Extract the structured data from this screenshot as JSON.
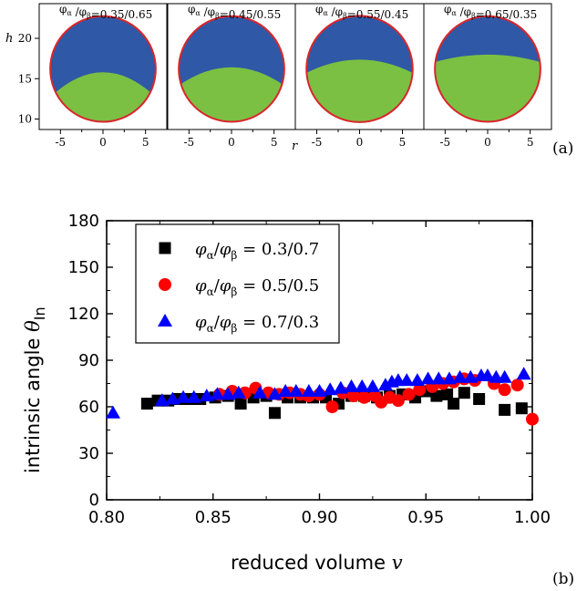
{
  "chart_data": [
    {
      "type": "heatmap",
      "panel_label": "(a)",
      "ylabel": "h",
      "xlabel": "r",
      "xticks": [
        -5,
        0,
        5
      ],
      "yticks": [
        10,
        15,
        20
      ],
      "xlim": [
        -7.5,
        7.5
      ],
      "ylim": [
        8.7,
        24.3
      ],
      "sphere": {
        "center_r": 0,
        "center_h": 16.2,
        "radius": 6.2
      },
      "phase_colors": {
        "beta": "#2f58a6",
        "alpha": "#7bc043",
        "rim": "#d9262b"
      },
      "subplots": [
        {
          "title": "φα /φβ=0.35/0.65",
          "sub1": "α",
          "sub2": "β",
          "ratio": "=0.35/0.65",
          "sub1_label": "φ",
          "interface_h": 15.5,
          "interface_curv": 3.0
        },
        {
          "title": "φα /φβ=0.45/0.55",
          "sub1": "α",
          "sub2": "β",
          "ratio": "=0.45/0.55",
          "sub1_label": "φ",
          "interface_h": 16.2,
          "interface_curv": 2.2
        },
        {
          "title": "φα /φβ=0.55/0.45",
          "sub1": "α",
          "sub2": "β",
          "ratio": "=0.55/0.45",
          "sub1_label": "φ",
          "interface_h": 17.2,
          "interface_curv": 1.6
        },
        {
          "title": "φα /φβ=0.65/0.35",
          "sub1": "α",
          "sub2": "β",
          "ratio": "=0.65/0.35",
          "sub1_label": "φ",
          "interface_h": 17.9,
          "interface_curv": 0.9
        }
      ]
    },
    {
      "type": "scatter",
      "panel_label": "(b)",
      "xlabel": "reduced volume ",
      "xlabel_var": "v",
      "ylabel": "intrinsic angle ",
      "ylabel_var": "θ",
      "ylabel_sub": "In",
      "xlim": [
        0.8,
        1.0
      ],
      "ylim": [
        0,
        180
      ],
      "xticks": [
        "0.80",
        "0.85",
        "0.90",
        "0.95",
        "1.00"
      ],
      "yticks": [
        "0",
        "30",
        "60",
        "90",
        "120",
        "150",
        "180"
      ],
      "legend_position": "top-left",
      "series": [
        {
          "name": "φα/φβ = 0.3/0.7",
          "legend_phi": "φ",
          "legend_a": "α",
          "legend_b": "β",
          "legend_value": " = 0.3/0.7",
          "marker": "square",
          "color": "#000000",
          "points": [
            [
              0.819,
              62
            ],
            [
              0.824,
              64
            ],
            [
              0.829,
              64
            ],
            [
              0.834,
              65
            ],
            [
              0.839,
              65
            ],
            [
              0.844,
              65
            ],
            [
              0.851,
              66
            ],
            [
              0.857,
              67
            ],
            [
              0.863,
              62
            ],
            [
              0.869,
              66
            ],
            [
              0.875,
              67
            ],
            [
              0.879,
              56
            ],
            [
              0.885,
              66
            ],
            [
              0.891,
              66
            ],
            [
              0.897,
              66
            ],
            [
              0.903,
              66
            ],
            [
              0.909,
              62
            ],
            [
              0.915,
              67
            ],
            [
              0.921,
              67
            ],
            [
              0.927,
              66
            ],
            [
              0.933,
              67
            ],
            [
              0.939,
              68
            ],
            [
              0.945,
              66
            ],
            [
              0.95,
              70
            ],
            [
              0.955,
              67
            ],
            [
              0.96,
              68
            ],
            [
              0.963,
              62
            ],
            [
              0.968,
              69
            ],
            [
              0.975,
              65
            ],
            [
              0.987,
              58
            ],
            [
              0.995,
              59
            ]
          ]
        },
        {
          "name": "φα/φβ = 0.5/0.5",
          "legend_phi": "φ",
          "legend_a": "α",
          "legend_b": "β",
          "legend_value": " = 0.5/0.5",
          "marker": "circle",
          "color": "#ff0000",
          "points": [
            [
              0.853,
              68
            ],
            [
              0.859,
              70
            ],
            [
              0.865,
              69
            ],
            [
              0.87,
              72
            ],
            [
              0.876,
              69
            ],
            [
              0.881,
              68
            ],
            [
              0.886,
              69
            ],
            [
              0.891,
              68
            ],
            [
              0.895,
              67
            ],
            [
              0.9,
              68
            ],
            [
              0.906,
              60
            ],
            [
              0.911,
              69
            ],
            [
              0.916,
              67
            ],
            [
              0.921,
              66
            ],
            [
              0.926,
              67
            ],
            [
              0.929,
              63
            ],
            [
              0.933,
              66
            ],
            [
              0.937,
              64
            ],
            [
              0.942,
              68
            ],
            [
              0.947,
              71
            ],
            [
              0.953,
              73
            ],
            [
              0.958,
              75
            ],
            [
              0.963,
              76
            ],
            [
              0.968,
              78
            ],
            [
              0.973,
              77
            ],
            [
              0.982,
              75
            ],
            [
              0.987,
              71
            ],
            [
              0.993,
              74
            ],
            [
              1.0,
              52
            ]
          ]
        },
        {
          "name": "φα/φβ = 0.7/0.3",
          "legend_phi": "φ",
          "legend_a": "α",
          "legend_b": "β",
          "legend_value": " = 0.7/0.3",
          "marker": "triangle",
          "color": "#0000ff",
          "points": [
            [
              0.803,
              56
            ],
            [
              0.826,
              64
            ],
            [
              0.831,
              65
            ],
            [
              0.836,
              66
            ],
            [
              0.841,
              66
            ],
            [
              0.847,
              67
            ],
            [
              0.852,
              68
            ],
            [
              0.857,
              68
            ],
            [
              0.862,
              69
            ],
            [
              0.872,
              69
            ],
            [
              0.879,
              68
            ],
            [
              0.884,
              70
            ],
            [
              0.889,
              70
            ],
            [
              0.895,
              70
            ],
            [
              0.9,
              70
            ],
            [
              0.905,
              71
            ],
            [
              0.91,
              72
            ],
            [
              0.915,
              73
            ],
            [
              0.92,
              73
            ],
            [
              0.925,
              73
            ],
            [
              0.931,
              74
            ],
            [
              0.934,
              76
            ],
            [
              0.937,
              77
            ],
            [
              0.941,
              77
            ],
            [
              0.946,
              77
            ],
            [
              0.951,
              78
            ],
            [
              0.956,
              78
            ],
            [
              0.961,
              78
            ],
            [
              0.966,
              79
            ],
            [
              0.971,
              79
            ],
            [
              0.976,
              80
            ],
            [
              0.979,
              80
            ],
            [
              0.983,
              79
            ],
            [
              0.987,
              79
            ],
            [
              0.996,
              81
            ]
          ]
        }
      ]
    }
  ]
}
